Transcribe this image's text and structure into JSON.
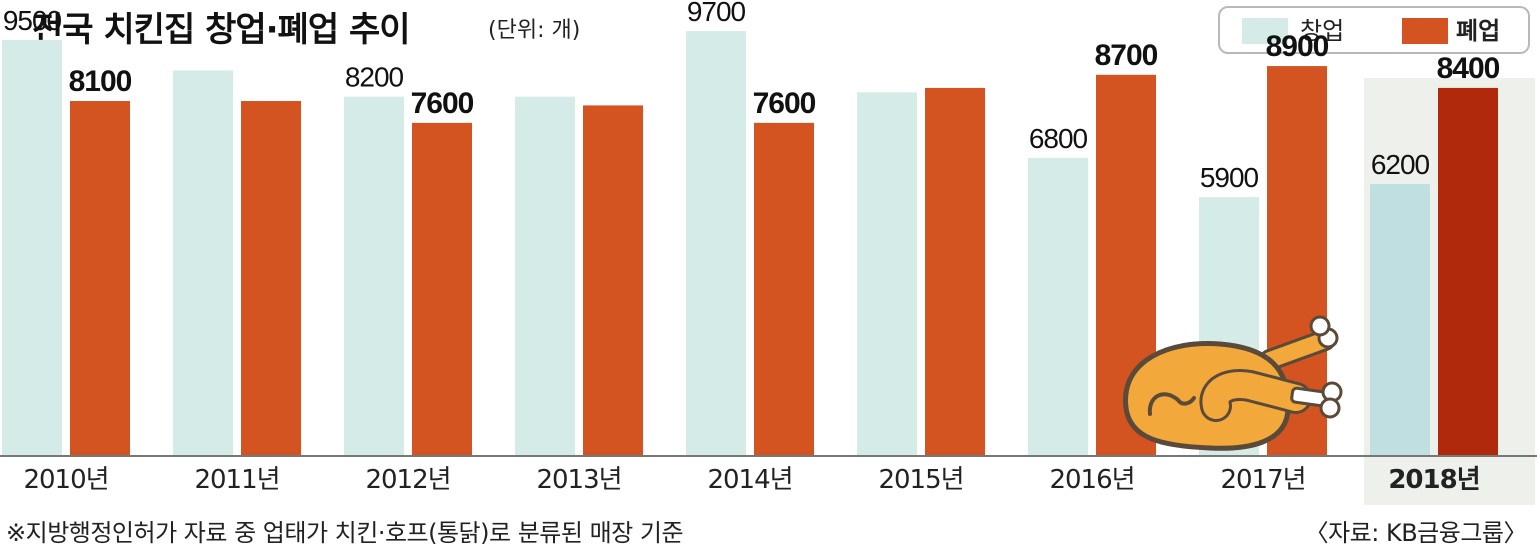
{
  "chart_data": {
    "type": "bar",
    "title": "전국 치킨집 창업·폐업 추이",
    "unit": "(단위: 개)",
    "categories": [
      "2010년",
      "2011년",
      "2012년",
      "2013년",
      "2014년",
      "2015년",
      "2016년",
      "2017년",
      "2018년"
    ],
    "series": [
      {
        "name": "창업",
        "values": [
          9500,
          8800,
          8200,
          8200,
          9700,
          8300,
          6800,
          5900,
          6200
        ],
        "labels": [
          "9500",
          "",
          "8200",
          "",
          "9700",
          "",
          "6800",
          "5900",
          "6200"
        ]
      },
      {
        "name": "폐업",
        "values": [
          8100,
          8100,
          7600,
          8000,
          7600,
          8400,
          8700,
          8900,
          8400
        ],
        "labels": [
          "8100",
          "",
          "7600",
          "",
          "7600",
          "",
          "8700",
          "8900",
          "8400"
        ]
      }
    ],
    "ylim": [
      0,
      10000
    ],
    "highlight_category": "2018년",
    "legend_position": "top-right",
    "grid": false
  },
  "colors": {
    "open": "#d5ebe8",
    "close": "#d35420",
    "open_highlight": "#bfdfe0",
    "close_highlight": "#b0290c",
    "highlight_bg": "#eef0ec",
    "chicken_body": "#f2a83a",
    "chicken_outline": "#5a4a3a"
  },
  "footnote": "※지방행정인허가 자료 중 업태가 치킨·호프(통닭)로 분류된 매장 기준",
  "source": "〈자료: KB금융그룹〉",
  "decoration": "roast-chicken-icon"
}
